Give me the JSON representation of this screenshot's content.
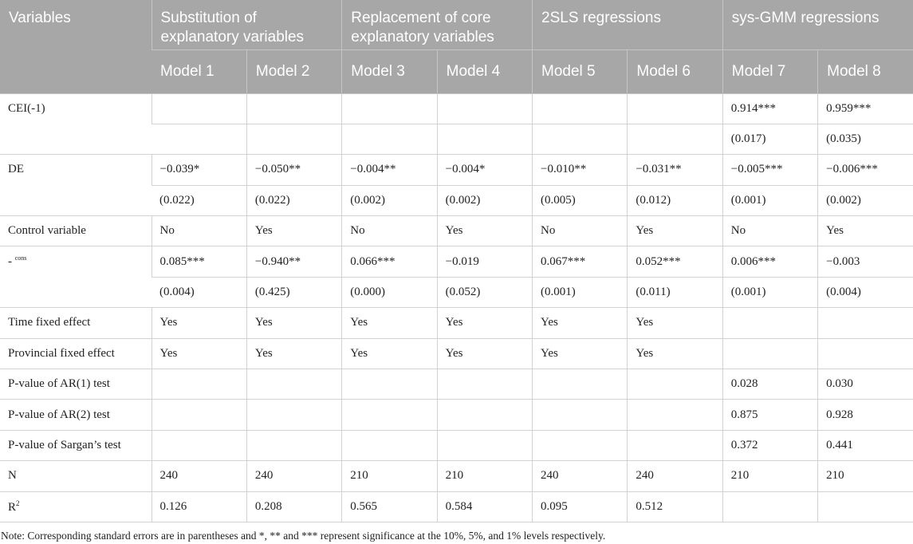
{
  "header": {
    "variables": "Variables",
    "groups": [
      "Substitution of explanatory variables",
      "Replacement of core explanatory variables",
      "2SLS regressions",
      "sys-GMM regressions"
    ],
    "models": [
      "Model 1",
      "Model 2",
      "Model 3",
      "Model 4",
      "Model 5",
      "Model 6",
      "Model 7",
      "Model 8"
    ]
  },
  "rows": {
    "cei": {
      "label": "CEI(-1)",
      "coef": [
        "",
        "",
        "",
        "",
        "",
        "",
        "0.914***",
        "0.959***"
      ],
      "se": [
        "",
        "",
        "",
        "",
        "",
        "",
        "(0.017)",
        "(0.035)"
      ]
    },
    "de": {
      "label": "DE",
      "coef": [
        "−0.039*",
        "−0.050**",
        "−0.004**",
        "−0.004*",
        "−0.010**",
        "−0.031**",
        "−0.005***",
        "−0.006***"
      ],
      "se": [
        "(0.022)",
        "(0.022)",
        "(0.002)",
        "(0.002)",
        "(0.005)",
        "(0.012)",
        "(0.001)",
        "(0.002)"
      ]
    },
    "control": {
      "label": "Control variable",
      "values": [
        "No",
        "Yes",
        "No",
        "Yes",
        "No",
        "Yes",
        "No",
        "Yes"
      ]
    },
    "cons": {
      "label_prefix": "-",
      "label_sub": "cons",
      "coef": [
        "0.085***",
        "−0.940**",
        "0.066***",
        "−0.019",
        "0.067***",
        "0.052***",
        "0.006***",
        "−0.003"
      ],
      "se": [
        "(0.004)",
        "(0.425)",
        "(0.000)",
        "(0.052)",
        "(0.001)",
        "(0.011)",
        "(0.001)",
        "(0.004)"
      ]
    },
    "time_fe": {
      "label": "Time fixed effect",
      "values": [
        "Yes",
        "Yes",
        "Yes",
        "Yes",
        "Yes",
        "Yes",
        "",
        ""
      ]
    },
    "prov_fe": {
      "label": "Provincial fixed effect",
      "values": [
        "Yes",
        "Yes",
        "Yes",
        "Yes",
        "Yes",
        "Yes",
        "",
        ""
      ]
    },
    "ar1": {
      "label": "P-value of AR(1) test",
      "values": [
        "",
        "",
        "",
        "",
        "",
        "",
        "0.028",
        "0.030"
      ]
    },
    "ar2": {
      "label": "P-value of AR(2) test",
      "values": [
        "",
        "",
        "",
        "",
        "",
        "",
        "0.875",
        "0.928"
      ]
    },
    "sargan": {
      "label": "P-value of Sargan’s test",
      "values": [
        "",
        "",
        "",
        "",
        "",
        "",
        "0.372",
        "0.441"
      ]
    },
    "n": {
      "label": "N",
      "values": [
        "240",
        "240",
        "210",
        "210",
        "240",
        "240",
        "210",
        "210"
      ]
    },
    "r2": {
      "label_base": "R",
      "label_sup": "2",
      "values": [
        "0.126",
        "0.208",
        "0.565",
        "0.584",
        "0.095",
        "0.512",
        "",
        ""
      ]
    }
  },
  "note": "Note: Corresponding standard errors are in parentheses and *, ** and *** represent significance at the 10%, 5%, and 1% levels respectively."
}
